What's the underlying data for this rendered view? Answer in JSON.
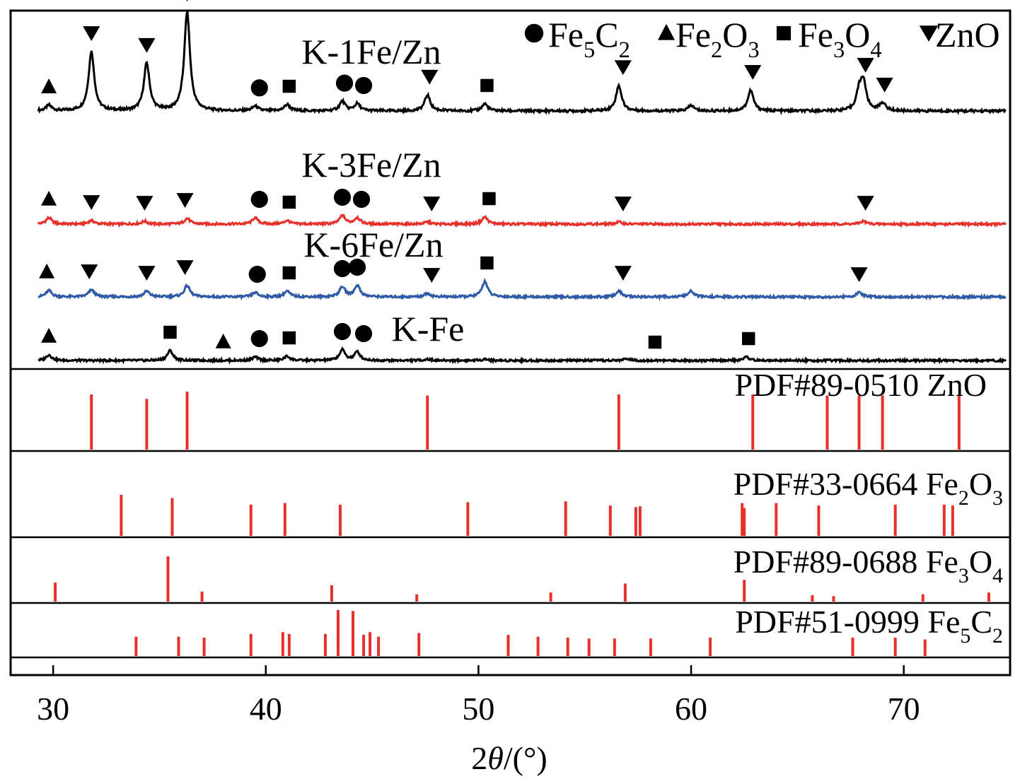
{
  "chart_data": {
    "type": "line",
    "xlabel_parts": [
      "2",
      "θ",
      "/(°)"
    ],
    "xlim": [
      28,
      75
    ],
    "x_ticks": [
      30,
      40,
      50,
      60,
      70
    ],
    "legend": [
      {
        "marker": "circle",
        "parts": [
          [
            "Fe",
            ""
          ],
          [
            "5",
            "sub"
          ],
          [
            "C",
            ""
          ],
          [
            "2",
            "sub"
          ]
        ]
      },
      {
        "marker": "triangle-up",
        "parts": [
          [
            "Fe",
            ""
          ],
          [
            "2",
            "sub"
          ],
          [
            "O",
            ""
          ],
          [
            "3",
            "sub"
          ]
        ]
      },
      {
        "marker": "square",
        "parts": [
          [
            "Fe",
            ""
          ],
          [
            "3",
            "sub"
          ],
          [
            "O",
            ""
          ],
          [
            "4",
            "sub"
          ]
        ]
      },
      {
        "marker": "triangle-down",
        "parts": [
          [
            "ZnO",
            ""
          ]
        ]
      }
    ],
    "series": [
      {
        "name": "K-1Fe/Zn",
        "color": "#000000",
        "peaks": [
          [
            29.8,
            7
          ],
          [
            31.8,
            75
          ],
          [
            34.4,
            60
          ],
          [
            36.3,
            125
          ],
          [
            39.5,
            6
          ],
          [
            41.0,
            8
          ],
          [
            43.6,
            12
          ],
          [
            44.3,
            9
          ],
          [
            47.6,
            20
          ],
          [
            50.3,
            9
          ],
          [
            56.6,
            32
          ],
          [
            60.0,
            7
          ],
          [
            62.8,
            26
          ],
          [
            67.9,
            22
          ],
          [
            68.1,
            35
          ],
          [
            69.0,
            10
          ]
        ],
        "markers": [
          [
            "triangle-up",
            29.8
          ],
          [
            "triangle-down",
            31.8
          ],
          [
            "triangle-down",
            34.4
          ],
          [
            "triangle-down",
            36.3
          ],
          [
            "circle",
            39.7
          ],
          [
            "square",
            41.1
          ],
          [
            "circle",
            43.7
          ],
          [
            "circle",
            44.6
          ],
          [
            "triangle-down",
            47.7
          ],
          [
            "square",
            50.4
          ],
          [
            "triangle-down",
            56.8
          ],
          [
            "triangle-down",
            62.9
          ],
          [
            "triangle-down",
            68.2
          ],
          [
            "triangle-down",
            69.1
          ]
        ]
      },
      {
        "name": "K-3Fe/Zn",
        "color": "#e8302b",
        "peaks": [
          [
            29.8,
            9
          ],
          [
            31.8,
            5
          ],
          [
            34.3,
            4
          ],
          [
            36.3,
            8
          ],
          [
            39.5,
            9
          ],
          [
            41.0,
            5
          ],
          [
            43.6,
            12
          ],
          [
            44.3,
            9
          ],
          [
            47.6,
            3
          ],
          [
            50.3,
            10
          ],
          [
            56.6,
            3
          ],
          [
            68.1,
            4
          ]
        ],
        "markers": [
          [
            "triangle-up",
            29.8
          ],
          [
            "triangle-down",
            31.8
          ],
          [
            "triangle-down",
            34.3
          ],
          [
            "triangle-down",
            36.2
          ],
          [
            "circle",
            39.7
          ],
          [
            "square",
            41.1
          ],
          [
            "circle",
            43.6
          ],
          [
            "circle",
            44.5
          ],
          [
            "triangle-down",
            47.8
          ],
          [
            "square",
            50.5
          ],
          [
            "triangle-down",
            56.8
          ],
          [
            "triangle-down",
            68.2
          ]
        ]
      },
      {
        "name": "K-6Fe/Zn",
        "color": "#2e5aa6",
        "peaks": [
          [
            29.8,
            9
          ],
          [
            31.8,
            10
          ],
          [
            34.4,
            8
          ],
          [
            36.3,
            16
          ],
          [
            39.5,
            6
          ],
          [
            41.0,
            8
          ],
          [
            43.6,
            14
          ],
          [
            44.3,
            16
          ],
          [
            47.6,
            5
          ],
          [
            50.3,
            22
          ],
          [
            56.6,
            8
          ],
          [
            60.0,
            8
          ],
          [
            67.9,
            6
          ]
        ],
        "markers": [
          [
            "triangle-up",
            29.7
          ],
          [
            "triangle-down",
            31.7
          ],
          [
            "triangle-down",
            34.4
          ],
          [
            "triangle-down",
            36.2
          ],
          [
            "circle",
            39.6
          ],
          [
            "square",
            41.1
          ],
          [
            "circle",
            43.6
          ],
          [
            "circle",
            44.3
          ],
          [
            "triangle-down",
            47.8
          ],
          [
            "square",
            50.4
          ],
          [
            "triangle-down",
            56.8
          ],
          [
            "triangle-down",
            67.9
          ]
        ]
      },
      {
        "name": "K-Fe",
        "color": "#000000",
        "peaks": [
          [
            29.8,
            8
          ],
          [
            35.5,
            14
          ],
          [
            39.5,
            5
          ],
          [
            41.0,
            6
          ],
          [
            43.6,
            15
          ],
          [
            44.3,
            12
          ],
          [
            47.6,
            2
          ],
          [
            50.3,
            2
          ],
          [
            57.0,
            3
          ],
          [
            62.6,
            5
          ]
        ],
        "markers": [
          [
            "triangle-up",
            29.8
          ],
          [
            "square",
            35.5
          ],
          [
            "triangle-up",
            38.0
          ],
          [
            "circle",
            39.7
          ],
          [
            "square",
            41.1
          ],
          [
            "circle",
            43.6
          ],
          [
            "circle",
            44.6
          ],
          [
            "square",
            58.3
          ],
          [
            "square",
            62.7
          ]
        ]
      }
    ],
    "references": [
      {
        "name_parts": [
          [
            "PDF#89-0510 ZnO",
            ""
          ]
        ],
        "color": "#e8302b",
        "sticks": [
          [
            31.8,
            100
          ],
          [
            34.4,
            92
          ],
          [
            36.3,
            105
          ],
          [
            47.6,
            98
          ],
          [
            56.6,
            100
          ],
          [
            62.9,
            100
          ],
          [
            66.4,
            98
          ],
          [
            67.9,
            98
          ],
          [
            69.0,
            98
          ],
          [
            72.6,
            98
          ]
        ]
      },
      {
        "name_parts": [
          [
            "PDF#33-0664 Fe",
            ""
          ],
          [
            "2",
            "sub"
          ],
          [
            "O",
            ""
          ],
          [
            "3",
            "sub"
          ]
        ],
        "color": "#e8302b",
        "sticks": [
          [
            33.2,
            100
          ],
          [
            35.6,
            92
          ],
          [
            39.3,
            76
          ],
          [
            40.9,
            80
          ],
          [
            43.5,
            76
          ],
          [
            49.5,
            82
          ],
          [
            54.1,
            84
          ],
          [
            57.4,
            70
          ],
          [
            57.6,
            72
          ],
          [
            62.4,
            80
          ],
          [
            64.0,
            80
          ],
          [
            66.0,
            74
          ],
          [
            69.6,
            76
          ],
          [
            71.9,
            76
          ],
          [
            72.3,
            74
          ],
          [
            62.5,
            68
          ],
          [
            56.2,
            74
          ]
        ]
      },
      {
        "name_parts": [
          [
            "PDF#89-0688 Fe",
            ""
          ],
          [
            "3",
            "sub"
          ],
          [
            "O",
            ""
          ],
          [
            "4",
            "sub"
          ]
        ],
        "color": "#e8302b",
        "sticks": [
          [
            30.1,
            42
          ],
          [
            35.4,
            100
          ],
          [
            37.0,
            22
          ],
          [
            43.1,
            36
          ],
          [
            47.1,
            16
          ],
          [
            53.4,
            20
          ],
          [
            56.9,
            40
          ],
          [
            62.5,
            48
          ],
          [
            65.7,
            14
          ],
          [
            66.7,
            12
          ],
          [
            70.9,
            16
          ],
          [
            74.0,
            20
          ]
        ]
      },
      {
        "name_parts": [
          [
            "PDF#51-0999 Fe",
            ""
          ],
          [
            "5",
            "sub"
          ],
          [
            "C",
            ""
          ],
          [
            "2",
            "sub"
          ]
        ],
        "color": "#e8302b",
        "sticks": [
          [
            33.9,
            42
          ],
          [
            35.9,
            42
          ],
          [
            37.1,
            40
          ],
          [
            39.3,
            48
          ],
          [
            40.8,
            52
          ],
          [
            41.1,
            48
          ],
          [
            42.8,
            48
          ],
          [
            43.4,
            100
          ],
          [
            44.1,
            98
          ],
          [
            44.6,
            46
          ],
          [
            44.9,
            52
          ],
          [
            45.3,
            42
          ],
          [
            47.2,
            50
          ],
          [
            51.4,
            46
          ],
          [
            52.8,
            42
          ],
          [
            54.2,
            40
          ],
          [
            55.2,
            38
          ],
          [
            56.4,
            38
          ],
          [
            58.1,
            38
          ],
          [
            60.9,
            40
          ],
          [
            67.6,
            40
          ],
          [
            69.6,
            40
          ],
          [
            71.0,
            36
          ]
        ]
      }
    ]
  }
}
